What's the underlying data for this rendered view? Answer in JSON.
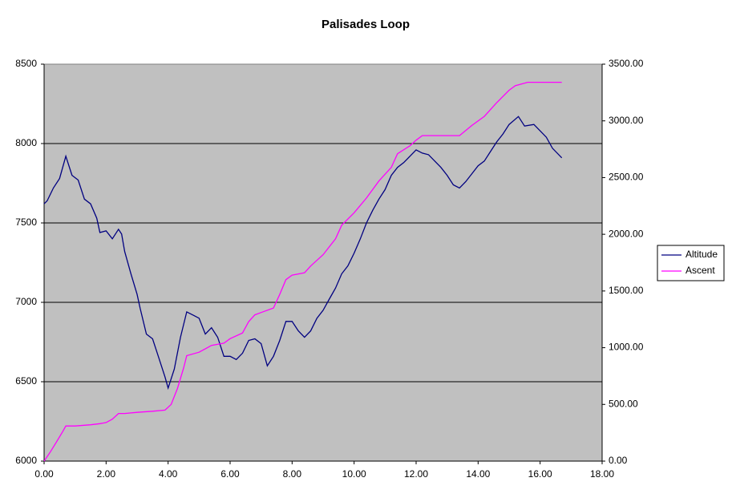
{
  "chart_data": {
    "type": "line",
    "title": "Palisades Loop",
    "xlim": [
      0,
      18
    ],
    "xticks": [
      {
        "value": 0,
        "label": "0.00"
      },
      {
        "value": 2,
        "label": "2.00"
      },
      {
        "value": 4,
        "label": "4.00"
      },
      {
        "value": 6,
        "label": "6.00"
      },
      {
        "value": 8,
        "label": "8.00"
      },
      {
        "value": 10,
        "label": "10.00"
      },
      {
        "value": 12,
        "label": "12.00"
      },
      {
        "value": 14,
        "label": "14.00"
      },
      {
        "value": 16,
        "label": "16.00"
      },
      {
        "value": 18,
        "label": "18.00"
      }
    ],
    "ylim": [
      6000,
      8500
    ],
    "yticks": [
      6000,
      6500,
      7000,
      7500,
      8000,
      8500
    ],
    "y2lim": [
      0,
      3500
    ],
    "y2ticks": [
      {
        "value": 0,
        "label": "0.00"
      },
      {
        "value": 500,
        "label": "500.00"
      },
      {
        "value": 1000,
        "label": "1000.00"
      },
      {
        "value": 1500,
        "label": "1500.00"
      },
      {
        "value": 2000,
        "label": "2000.00"
      },
      {
        "value": 2500,
        "label": "2500.00"
      },
      {
        "value": 3000,
        "label": "3000.00"
      },
      {
        "value": 3500,
        "label": "3500.00"
      }
    ],
    "grid": true,
    "legend": "right",
    "plot_background": "#c0c0c0",
    "series": [
      {
        "name": "Altitude",
        "color": "#000080",
        "x": [
          0,
          0.1,
          0.3,
          0.5,
          0.7,
          0.9,
          1.1,
          1.3,
          1.5,
          1.7,
          1.8,
          2.0,
          2.2,
          2.4,
          2.5,
          2.6,
          2.8,
          3.0,
          3.1,
          3.3,
          3.5,
          3.7,
          3.9,
          4.0,
          4.2,
          4.4,
          4.6,
          4.8,
          5.0,
          5.2,
          5.4,
          5.6,
          5.8,
          6.0,
          6.2,
          6.4,
          6.6,
          6.8,
          7.0,
          7.2,
          7.4,
          7.6,
          7.8,
          8.0,
          8.2,
          8.4,
          8.6,
          8.8,
          9.0,
          9.2,
          9.4,
          9.6,
          9.8,
          10.0,
          10.2,
          10.4,
          10.6,
          10.8,
          11.0,
          11.2,
          11.4,
          11.6,
          11.8,
          12.0,
          12.2,
          12.4,
          12.6,
          12.8,
          13.0,
          13.2,
          13.4,
          13.6,
          13.8,
          14.0,
          14.2,
          14.4,
          14.6,
          14.8,
          15.0,
          15.3,
          15.5,
          15.8,
          16.0,
          16.2,
          16.4,
          16.7
        ],
        "values": [
          7620,
          7640,
          7720,
          7780,
          7920,
          7800,
          7770,
          7650,
          7620,
          7530,
          7440,
          7450,
          7400,
          7460,
          7430,
          7320,
          7180,
          7050,
          6960,
          6800,
          6770,
          6650,
          6530,
          6460,
          6580,
          6780,
          6940,
          6920,
          6900,
          6800,
          6840,
          6780,
          6660,
          6660,
          6640,
          6680,
          6760,
          6770,
          6740,
          6600,
          6660,
          6760,
          6880,
          6880,
          6820,
          6780,
          6820,
          6900,
          6950,
          7020,
          7090,
          7180,
          7230,
          7310,
          7400,
          7500,
          7580,
          7650,
          7710,
          7800,
          7850,
          7880,
          7920,
          7960,
          7940,
          7930,
          7890,
          7850,
          7800,
          7740,
          7720,
          7760,
          7810,
          7860,
          7890,
          7950,
          8010,
          8060,
          8120,
          8170,
          8110,
          8120,
          8080,
          8040,
          7970,
          7910
        ]
      },
      {
        "name": "Ascent",
        "color": "#ff00ff",
        "axis": "y2",
        "x": [
          0,
          0.2,
          0.4,
          0.6,
          0.7,
          1.0,
          1.5,
          1.8,
          2.0,
          2.2,
          2.4,
          2.6,
          3.0,
          3.5,
          3.9,
          4.1,
          4.3,
          4.5,
          4.6,
          5.0,
          5.4,
          5.8,
          6.0,
          6.4,
          6.6,
          6.8,
          7.0,
          7.4,
          7.6,
          7.8,
          8.0,
          8.4,
          8.6,
          9.0,
          9.4,
          9.6,
          10.0,
          10.4,
          10.8,
          11.2,
          11.4,
          11.8,
          12.0,
          12.2,
          13.0,
          13.4,
          13.8,
          14.2,
          14.6,
          15.0,
          15.2,
          15.6,
          16.0,
          16.7
        ],
        "values": [
          0,
          80,
          170,
          260,
          310,
          310,
          320,
          330,
          340,
          370,
          420,
          420,
          430,
          440,
          450,
          500,
          640,
          820,
          930,
          960,
          1020,
          1040,
          1080,
          1130,
          1230,
          1290,
          1310,
          1350,
          1470,
          1600,
          1640,
          1660,
          1720,
          1820,
          1960,
          2080,
          2190,
          2320,
          2470,
          2590,
          2710,
          2780,
          2830,
          2870,
          2870,
          2870,
          2960,
          3040,
          3160,
          3270,
          3310,
          3340,
          3340,
          3340
        ]
      }
    ]
  }
}
